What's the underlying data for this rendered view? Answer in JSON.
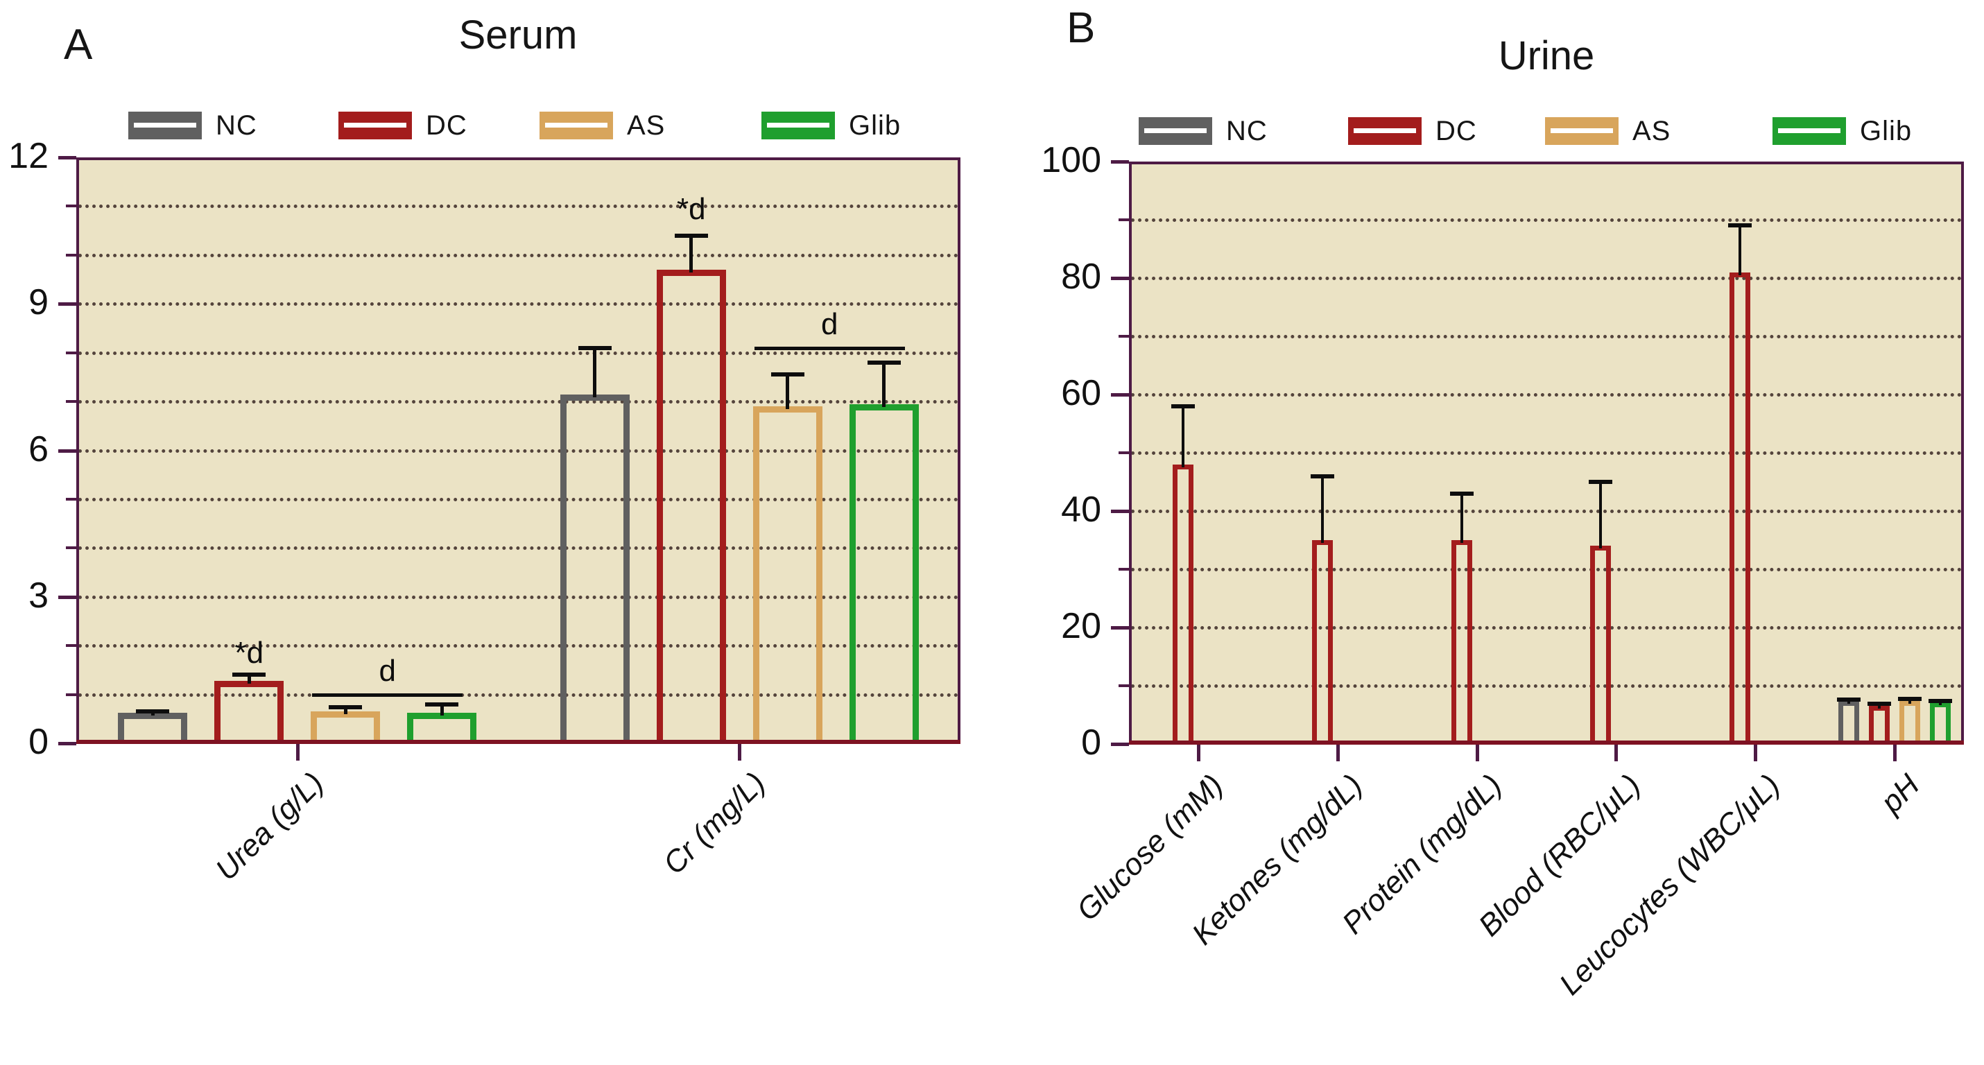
{
  "colors": {
    "plot_background": "#ebe3c5",
    "frame": "#4e1b45",
    "bottom_axis": "#7e1222",
    "grid_dots": "#54443c",
    "error_bars": "#0d0d0d",
    "nc": "#606060",
    "dc": "#a31d1d",
    "as": "#d8a55c",
    "glib": "#1f9f2e"
  },
  "chart_data": [
    {
      "type": "bar",
      "panel_letter": "A",
      "title": "Serum",
      "categories": [
        "Urea (g/L)",
        "Cr (mg/L)"
      ],
      "series": [
        {
          "name": "NC",
          "color": "#606060",
          "values": [
            0.62,
            7.15
          ],
          "errors": [
            0.04,
            0.95
          ]
        },
        {
          "name": "DC",
          "color": "#a31d1d",
          "values": [
            1.28,
            9.7
          ],
          "errors": [
            0.12,
            0.7
          ]
        },
        {
          "name": "AS",
          "color": "#d8a55c",
          "values": [
            0.66,
            6.9
          ],
          "errors": [
            0.08,
            0.65
          ]
        },
        {
          "name": "Glib",
          "color": "#1f9f2e",
          "values": [
            0.63,
            6.95
          ],
          "errors": [
            0.17,
            0.85
          ]
        }
      ],
      "ylim": [
        0,
        12
      ],
      "y_major_step": 3,
      "y_minor_step": 1,
      "y_tick_labels": [
        "0",
        "3",
        "6",
        "9",
        "12"
      ],
      "grid": "horizontal dotted every 1 unit",
      "legend_position": "top",
      "bar_style": "hollow outline",
      "annotations": [
        {
          "kind": "sig-label",
          "text": "*d",
          "category": 0,
          "series": "DC",
          "y": 1.54
        },
        {
          "kind": "sig-label",
          "text": "*d",
          "category": 1,
          "series": "DC",
          "y": 10.62
        },
        {
          "kind": "sig-bracket",
          "text": "d",
          "category": 0,
          "from_series": "AS",
          "to_series": "Glib",
          "y": 1.0
        },
        {
          "kind": "sig-bracket",
          "text": "d",
          "category": 1,
          "from_series": "AS",
          "to_series": "Glib",
          "y": 8.1
        }
      ]
    },
    {
      "type": "bar",
      "panel_letter": "B",
      "title": "Urine",
      "categories": [
        "Glucose (mM)",
        "Ketones (mg/dL)",
        "Protein (mg/dL)",
        "Blood (RBC/μL)",
        "Leucocytes (WBC/μL)",
        "pH"
      ],
      "series": [
        {
          "name": "NC",
          "color": "#606060",
          "values": [
            0,
            0,
            0,
            0,
            0,
            7.4
          ],
          "errors": [
            0,
            0,
            0,
            0,
            0,
            0.25
          ]
        },
        {
          "name": "DC",
          "color": "#a31d1d",
          "values": [
            48,
            35,
            35,
            34,
            81,
            6.6
          ],
          "errors": [
            10,
            11,
            8,
            11,
            8,
            0.35
          ]
        },
        {
          "name": "AS",
          "color": "#d8a55c",
          "values": [
            0,
            0,
            0,
            0,
            0,
            7.4
          ],
          "errors": [
            0,
            0,
            0,
            0,
            0,
            0.3
          ]
        },
        {
          "name": "Glib",
          "color": "#1f9f2e",
          "values": [
            0,
            0,
            0,
            0,
            0,
            7.1
          ],
          "errors": [
            0,
            0,
            0,
            0,
            0,
            0.3
          ]
        }
      ],
      "ylim": [
        0,
        100
      ],
      "y_major_step": 20,
      "y_minor_step": 10,
      "y_tick_labels": [
        "0",
        "20",
        "40",
        "60",
        "80",
        "100"
      ],
      "grid": "horizontal dotted every 10 units",
      "legend_position": "top",
      "bar_style": "hollow outline",
      "annotations": []
    }
  ]
}
